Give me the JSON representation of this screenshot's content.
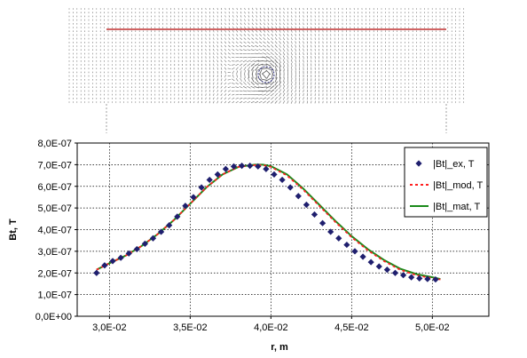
{
  "chart_data": {
    "type": "scatter",
    "xlabel": "r, m",
    "ylabel": "Bt, T",
    "xlim": [
      0.028,
      0.0535
    ],
    "ylim": [
      0,
      8e-07
    ],
    "xticks": [
      "3,0E-02",
      "3,5E-02",
      "4,0E-02",
      "4,5E-02",
      "5,0E-02"
    ],
    "xtick_values": [
      0.03,
      0.035,
      0.04,
      0.045,
      0.05
    ],
    "yticks": [
      "0,0E+00",
      "1,0E-07",
      "2,0E-07",
      "3,0E-07",
      "4,0E-07",
      "5,0E-07",
      "6,0E-07",
      "7,0E-07",
      "8,0E-07"
    ],
    "ytick_values": [
      0,
      1e-07,
      2e-07,
      3e-07,
      4e-07,
      5e-07,
      6e-07,
      7e-07,
      8e-07
    ],
    "grid": true,
    "legend_position": "right",
    "series": [
      {
        "name": "|Bt|_ex, T",
        "style": "markers",
        "color": "#1f1f6e",
        "x": [
          0.0292,
          0.0297,
          0.0302,
          0.0307,
          0.0312,
          0.0317,
          0.0322,
          0.0327,
          0.0332,
          0.0337,
          0.0342,
          0.0347,
          0.0352,
          0.0357,
          0.0362,
          0.0367,
          0.0372,
          0.0377,
          0.0382,
          0.0387,
          0.0392,
          0.0397,
          0.0402,
          0.0407,
          0.0412,
          0.0417,
          0.0422,
          0.0427,
          0.0432,
          0.0437,
          0.0442,
          0.0447,
          0.0452,
          0.0457,
          0.0462,
          0.0467,
          0.0472,
          0.0477,
          0.0482,
          0.0487,
          0.0492,
          0.0497,
          0.0502
        ],
        "y": [
          2e-07,
          2.35e-07,
          2.55e-07,
          2.7e-07,
          2.9e-07,
          3.1e-07,
          3.35e-07,
          3.6e-07,
          3.9e-07,
          4.2e-07,
          4.6e-07,
          5.1e-07,
          5.5e-07,
          5.95e-07,
          6.3e-07,
          6.55e-07,
          6.8e-07,
          6.92e-07,
          6.95e-07,
          6.95e-07,
          6.92e-07,
          6.8e-07,
          6.55e-07,
          6.3e-07,
          5.95e-07,
          5.55e-07,
          5.15e-07,
          4.7e-07,
          4.3e-07,
          3.9e-07,
          3.6e-07,
          3.3e-07,
          3e-07,
          2.75e-07,
          2.5e-07,
          2.3e-07,
          2.15e-07,
          2e-07,
          1.9e-07,
          1.8e-07,
          1.75e-07,
          1.72e-07,
          1.7e-07
        ]
      },
      {
        "name": "|Bt|_mod, T",
        "style": "dashed",
        "color": "#ff2020",
        "x": [
          0.0292,
          0.03,
          0.031,
          0.032,
          0.033,
          0.034,
          0.035,
          0.036,
          0.037,
          0.038,
          0.039,
          0.0395,
          0.04,
          0.041,
          0.042,
          0.043,
          0.044,
          0.045,
          0.046,
          0.047,
          0.048,
          0.049,
          0.05,
          0.0505
        ],
        "y": [
          2.15e-07,
          2.45e-07,
          2.8e-07,
          3.25e-07,
          3.8e-07,
          4.45e-07,
          5.2e-07,
          5.95e-07,
          6.55e-07,
          6.9e-07,
          6.98e-07,
          6.98e-07,
          6.9e-07,
          6.5e-07,
          5.85e-07,
          5.1e-07,
          4.35e-07,
          3.65e-07,
          3.05e-07,
          2.55e-07,
          2.15e-07,
          1.9e-07,
          1.75e-07,
          1.7e-07
        ]
      },
      {
        "name": "|Bt|_mat, T",
        "style": "solid",
        "color": "#1a8a1a",
        "x": [
          0.0292,
          0.03,
          0.031,
          0.032,
          0.033,
          0.034,
          0.035,
          0.036,
          0.037,
          0.038,
          0.039,
          0.0395,
          0.04,
          0.041,
          0.042,
          0.043,
          0.044,
          0.045,
          0.046,
          0.047,
          0.048,
          0.049,
          0.05,
          0.0505
        ],
        "y": [
          2.15e-07,
          2.45e-07,
          2.8e-07,
          3.25e-07,
          3.8e-07,
          4.45e-07,
          5.2e-07,
          5.95e-07,
          6.55e-07,
          6.9e-07,
          7e-07,
          7e-07,
          6.93e-07,
          6.55e-07,
          5.9e-07,
          5.15e-07,
          4.4e-07,
          3.7e-07,
          3.1e-07,
          2.6e-07,
          2.2e-07,
          1.95e-07,
          1.8e-07,
          1.72e-07
        ]
      }
    ]
  },
  "field_image": {
    "description_color": "#d03030",
    "line_color": "#c03030",
    "arrow_color": "#6b6b6b"
  }
}
